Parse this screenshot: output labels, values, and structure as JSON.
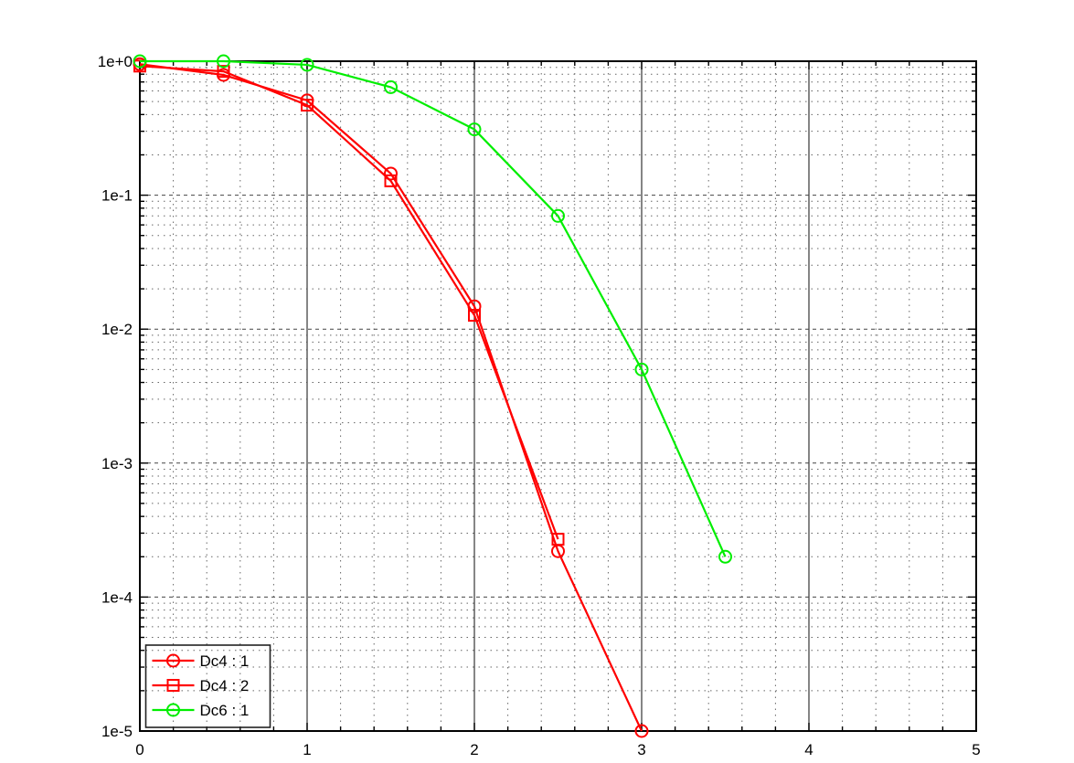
{
  "window": {
    "background": "#ffffff"
  },
  "chart_data": {
    "type": "line",
    "title": "",
    "xlabel": "",
    "ylabel": "",
    "x_axis": {
      "range": [
        0,
        5
      ],
      "ticks": [
        0,
        1,
        2,
        3,
        4,
        5
      ],
      "tick_labels": [
        "0",
        "1",
        "2",
        "3",
        "4",
        "5"
      ],
      "minor_tick_step": 0.2,
      "grid_major": "solid",
      "grid_minor": "dotted"
    },
    "y_axis": {
      "scale": "log",
      "range": [
        1e-05,
        1
      ],
      "tick_values": [
        1,
        0.1,
        0.01,
        0.001,
        0.0001,
        1e-05
      ],
      "tick_labels": [
        "1e+0",
        "1e-1",
        "1e-2",
        "1e-3",
        "1e-4",
        "1e-5"
      ],
      "minor_ticks": "log-2-to-9-per-decade",
      "grid_major": "dashed",
      "grid_minor": "dotted"
    },
    "series": [
      {
        "name": "Dc4 : 1",
        "color": "#ff0000",
        "marker": "circle",
        "x": [
          0,
          0.5,
          1,
          1.5,
          2,
          2.5,
          3
        ],
        "y": [
          0.95,
          0.79,
          0.51,
          0.145,
          0.0148,
          0.00022,
          1e-05
        ]
      },
      {
        "name": "Dc4 : 2",
        "color": "#ff0000",
        "marker": "square",
        "x": [
          0,
          0.5,
          1,
          1.5,
          2,
          2.5
        ],
        "y": [
          0.92,
          0.84,
          0.47,
          0.128,
          0.0127,
          0.00027
        ]
      },
      {
        "name": "Dc6 : 1",
        "color": "#00ee00",
        "marker": "circle",
        "x": [
          0,
          0.5,
          1,
          1.5,
          2,
          2.5,
          3,
          3.5
        ],
        "y": [
          1.0,
          1.0,
          0.94,
          0.64,
          0.31,
          0.07,
          0.005,
          0.0002
        ]
      }
    ],
    "legend": {
      "position": "bottom-left",
      "border": true,
      "transparent_background": true,
      "entries": [
        "Dc4 : 1",
        "Dc4 : 2",
        "Dc6 : 1"
      ]
    },
    "colors": {
      "axis_border": "#000000",
      "grid_major": "#444444",
      "grid_minor": "#666666",
      "tick": "#000000",
      "legend_border": "#222222",
      "label_text": "#000000"
    }
  }
}
